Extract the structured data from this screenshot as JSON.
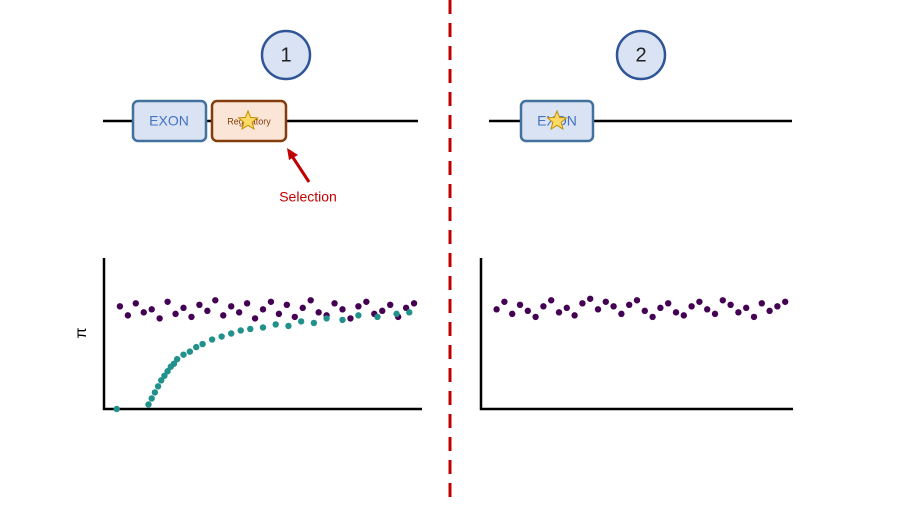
{
  "panels": [
    {
      "number": "1"
    },
    {
      "number": "2"
    }
  ],
  "genes": {
    "exon_1": "EXON",
    "regulatory": "Regulatory",
    "exon_2": "EXON"
  },
  "annotation": "Selection",
  "chart_data": [
    {
      "type": "scatter",
      "y_label": "π",
      "xlim": [
        0,
        100
      ],
      "ylim": [
        0,
        100
      ],
      "series": [
        {
          "color": "#440154",
          "x": [
            5,
            7.5,
            10,
            12.5,
            15,
            17.5,
            20,
            22.5,
            25,
            27.5,
            30,
            32.5,
            35,
            37.5,
            40,
            42.5,
            45,
            47.5,
            50,
            52.5,
            55,
            57.5,
            60,
            62.5,
            65,
            67.5,
            70,
            72.5,
            75,
            77.5,
            80,
            82.5,
            85,
            87.5,
            90,
            92.5,
            95,
            97.5
          ],
          "values": [
            68,
            62,
            70,
            64,
            66,
            60,
            71,
            63,
            67,
            61,
            69,
            65,
            72,
            62,
            68,
            64,
            70,
            60,
            66,
            71,
            63,
            69,
            61,
            67,
            72,
            64,
            62,
            70,
            66,
            60,
            68,
            71,
            63,
            65,
            69,
            61,
            67,
            70
          ]
        },
        {
          "color": "#21918c",
          "x": [
            4,
            14,
            15,
            16,
            17,
            18,
            19,
            20,
            21,
            22,
            23,
            25,
            27,
            29,
            31,
            34,
            37,
            40,
            43,
            46,
            50,
            54,
            58,
            62,
            66,
            70,
            75,
            80,
            86,
            92,
            96
          ],
          "values": [
            0,
            3,
            7,
            11,
            15,
            19,
            22,
            25,
            28,
            30,
            33,
            36,
            38,
            41,
            43,
            46,
            48,
            50,
            52,
            53,
            54,
            56,
            55,
            58,
            57,
            60,
            59,
            62,
            61,
            63,
            64
          ]
        }
      ]
    },
    {
      "type": "scatter",
      "xlim": [
        0,
        100
      ],
      "ylim": [
        0,
        100
      ],
      "series": [
        {
          "color": "#440154",
          "x": [
            5,
            7.5,
            10,
            12.5,
            15,
            17.5,
            20,
            22.5,
            25,
            27.5,
            30,
            32.5,
            35,
            37.5,
            40,
            42.5,
            45,
            47.5,
            50,
            52.5,
            55,
            57.5,
            60,
            62.5,
            65,
            67.5,
            70,
            72.5,
            75,
            77.5,
            80,
            82.5,
            85,
            87.5,
            90,
            92.5,
            95,
            97.5
          ],
          "values": [
            66,
            71,
            63,
            69,
            65,
            61,
            68,
            72,
            64,
            67,
            62,
            70,
            73,
            66,
            71,
            68,
            63,
            69,
            72,
            65,
            61,
            67,
            70,
            64,
            62,
            68,
            71,
            66,
            63,
            72,
            69,
            64,
            67,
            61,
            70,
            65,
            68,
            71
          ]
        }
      ]
    }
  ]
}
